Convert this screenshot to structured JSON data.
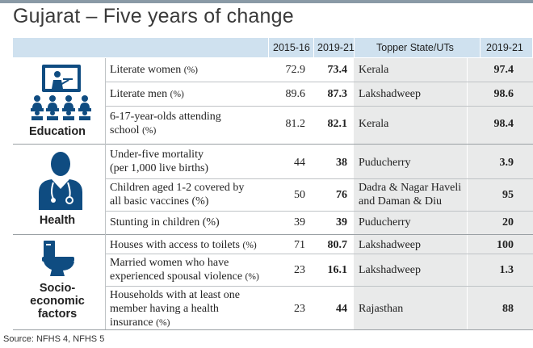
{
  "title": "Gujarat – Five years of change",
  "columns": {
    "y1": "2015-16",
    "y2": "2019-21",
    "topper": "Topper State/UTs",
    "topper_year": "2019-21"
  },
  "sections": [
    {
      "category": "Education",
      "icon": "classroom-icon",
      "rows": [
        {
          "label": "Literate women",
          "unit": "(%)",
          "v1": "72.9",
          "v2": "73.4",
          "topper": "Kerala",
          "tv": "97.4"
        },
        {
          "label": "Literate men",
          "unit": "(%)",
          "v1": "89.6",
          "v2": "87.3",
          "topper": "Lakshadweep",
          "tv": "98.6"
        },
        {
          "label_l1": "6-17-year-olds attending",
          "label_l2": "school",
          "unit": "(%)",
          "v1": "81.2",
          "v2": "82.1",
          "topper": "Kerala",
          "tv": "98.4"
        }
      ]
    },
    {
      "category": "Health",
      "icon": "doctor-icon",
      "rows": [
        {
          "label_l1": "Under-five mortality",
          "label_l2": "(per 1,000 live births)",
          "v1": "44",
          "v2": "38",
          "topper": "Puducherry",
          "tv": "3.9"
        },
        {
          "label_l1": "Children aged 1-2 covered by",
          "label_l2": "all basic vaccines (%)",
          "v1": "50",
          "v2": "76",
          "topper_l1": "Dadra & Nagar Haveli",
          "topper_l2": "and Daman & Diu",
          "tv": "95"
        },
        {
          "label": "Stunting in children (%)",
          "v1": "39",
          "v2": "39",
          "topper": "Puducherry",
          "tv": "20"
        }
      ]
    },
    {
      "category_l1": "Socio-",
      "category_l2": "economic",
      "category_l3": "factors",
      "icon": "toilet-icon",
      "rows": [
        {
          "label": "Houses with access to toilets",
          "unit": "(%)",
          "v1": "71",
          "v2": "80.7",
          "topper": "Lakshadweep",
          "tv": "100"
        },
        {
          "label_l1": "Married women who have",
          "label_l2": "experienced spousal violence",
          "unit": "(%)",
          "v1": "23",
          "v2": "16.1",
          "topper": "Lakshadweep",
          "tv": "1.3"
        },
        {
          "label_l1": "Households with at least one",
          "label_l2": "member having a health",
          "label_l3": "insurance",
          "unit": "(%)",
          "v1": "23",
          "v2": "44",
          "topper": "Rajasthan",
          "tv": "88"
        }
      ]
    }
  ],
  "source": "Source: NFHS 4, NFHS 5",
  "colors": {
    "header": "#cfe1ef",
    "icon": "#0f4c81",
    "shade": "#e9eaea"
  }
}
